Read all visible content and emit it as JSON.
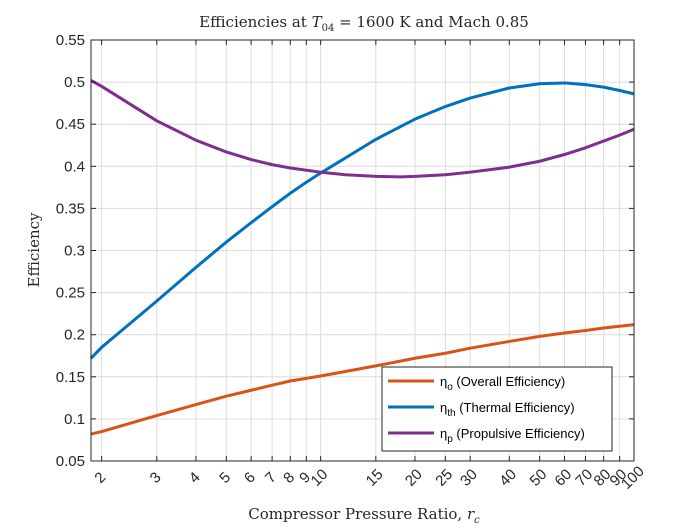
{
  "chart_data": {
    "type": "line",
    "title_parts": {
      "prefix": "Efficiencies at ",
      "var": "T",
      "sub": "04",
      "suffix": " = 1600 K and Mach 0.85"
    },
    "xlabel_parts": {
      "prefix": "Compressor Pressure Ratio, ",
      "var": "r",
      "sub": "c"
    },
    "ylabel": "Efficiency",
    "xscale": "log",
    "xlim": [
      1.85,
      100
    ],
    "ylim": [
      0.05,
      0.55
    ],
    "xticks": [
      2,
      3,
      4,
      5,
      6,
      7,
      8,
      9,
      10,
      15,
      20,
      25,
      30,
      40,
      50,
      60,
      70,
      80,
      90,
      100
    ],
    "xtick_labels": [
      "2",
      "3",
      "4",
      "5",
      "6",
      "7",
      "8",
      "9",
      "10",
      "15",
      "20",
      "25",
      "30",
      "40",
      "50",
      "60",
      "70",
      "80",
      "90",
      "100"
    ],
    "yticks": [
      0.05,
      0.1,
      0.15,
      0.2,
      0.25,
      0.3,
      0.35,
      0.4,
      0.45,
      0.5,
      0.55
    ],
    "ytick_labels": [
      "0.05",
      "0.1",
      "0.15",
      "0.2",
      "0.25",
      "0.3",
      "0.35",
      "0.4",
      "0.45",
      "0.5",
      "0.55"
    ],
    "grid": true,
    "legend_position": "bottom-right",
    "series": [
      {
        "key": "overall",
        "legend": {
          "sym": "η",
          "sub": "o",
          "text": " (Overall Efficiency)"
        },
        "color": "#D95319",
        "x": [
          1.85,
          2,
          3,
          4,
          5,
          6,
          7,
          8,
          10,
          15,
          20,
          25,
          30,
          40,
          50,
          60,
          70,
          80,
          90,
          100
        ],
        "y": [
          0.082,
          0.085,
          0.104,
          0.117,
          0.127,
          0.134,
          0.14,
          0.145,
          0.151,
          0.163,
          0.172,
          0.178,
          0.184,
          0.192,
          0.198,
          0.202,
          0.205,
          0.208,
          0.21,
          0.212
        ]
      },
      {
        "key": "thermal",
        "legend": {
          "sym": "η",
          "sub": "th",
          "text": " (Thermal Efficiency)"
        },
        "color": "#0072BD",
        "x": [
          1.85,
          2,
          3,
          4,
          5,
          6,
          7,
          8,
          9,
          10,
          15,
          20,
          25,
          30,
          40,
          50,
          60,
          70,
          80,
          90,
          100
        ],
        "y": [
          0.172,
          0.185,
          0.24,
          0.28,
          0.31,
          0.333,
          0.352,
          0.368,
          0.381,
          0.392,
          0.432,
          0.456,
          0.471,
          0.481,
          0.493,
          0.498,
          0.499,
          0.497,
          0.494,
          0.49,
          0.486
        ]
      },
      {
        "key": "propulsive",
        "legend": {
          "sym": "η",
          "sub": "p",
          "text": " (Propulsive Efficiency)"
        },
        "color": "#7E2F8E",
        "x": [
          1.85,
          2,
          3,
          4,
          5,
          6,
          7,
          8,
          10,
          12,
          15,
          18,
          20,
          25,
          30,
          40,
          50,
          60,
          70,
          80,
          90,
          100
        ],
        "y": [
          0.502,
          0.495,
          0.454,
          0.431,
          0.417,
          0.408,
          0.402,
          0.398,
          0.393,
          0.39,
          0.388,
          0.3875,
          0.388,
          0.39,
          0.393,
          0.399,
          0.406,
          0.414,
          0.422,
          0.43,
          0.437,
          0.444
        ]
      }
    ]
  }
}
